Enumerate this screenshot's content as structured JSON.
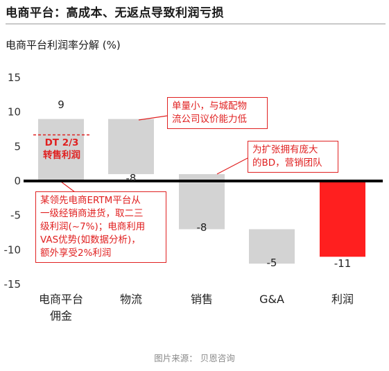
{
  "header": {
    "title": "电商平台：高成本、无返点导致利润亏损"
  },
  "chart_data": {
    "type": "bar",
    "subtype": "waterfall",
    "title": "电商平台利润率分解 (%)",
    "categories": [
      "电商平台佣金",
      "物流",
      "销售",
      "G&A",
      "利润"
    ],
    "category_lines": [
      [
        "电商平台",
        "佣金"
      ],
      [
        "物流"
      ],
      [
        "销售"
      ],
      [
        "G&A"
      ],
      [
        "利润"
      ]
    ],
    "values": [
      9,
      -8,
      -8,
      -5,
      -11
    ],
    "value_labels": [
      "9",
      "-8",
      "-8",
      "-5",
      "-11"
    ],
    "bars": [
      {
        "start": 0,
        "end": 9,
        "color": "#d3d3d3"
      },
      {
        "start": 9,
        "end": 1,
        "color": "#d3d3d3"
      },
      {
        "start": 1,
        "end": -7,
        "color": "#d3d3d3"
      },
      {
        "start": -7,
        "end": -12,
        "color": "#d3d3d3"
      },
      {
        "start": 0,
        "end": -11,
        "color": "#ff1f1f"
      }
    ],
    "ylim": [
      -15,
      15
    ],
    "yticks": [
      15,
      10,
      5,
      0,
      -5,
      -10,
      -15
    ],
    "ytick_labels": [
      "15",
      "10",
      "5",
      "0",
      "-5",
      "-10",
      "-15"
    ],
    "zero_line_color": "#000000",
    "reference_line": {
      "value": 6.7,
      "label_lines": [
        "DT 2/3",
        "转售利润"
      ],
      "color": "#e02020"
    },
    "legend": "none",
    "grid": false
  },
  "annotations": {
    "logistics": [
      "单量小，与城配物",
      "流公司议价能力低"
    ],
    "sales": [
      "为扩张拥有庞大",
      "的BD，营销团队"
    ],
    "commission": [
      "某领先电商ERTM平台从",
      "一级经销商进货，取二三",
      "级利润(~7%)；电商利用",
      "VAS优势(如数据分析)，",
      "额外享受2%利润"
    ]
  },
  "colors": {
    "accent_red": "#e02020",
    "bar_gray": "#d3d3d3",
    "profit_red": "#ff1f1f"
  },
  "footer": {
    "source": "图片来源： 贝恩咨询"
  }
}
